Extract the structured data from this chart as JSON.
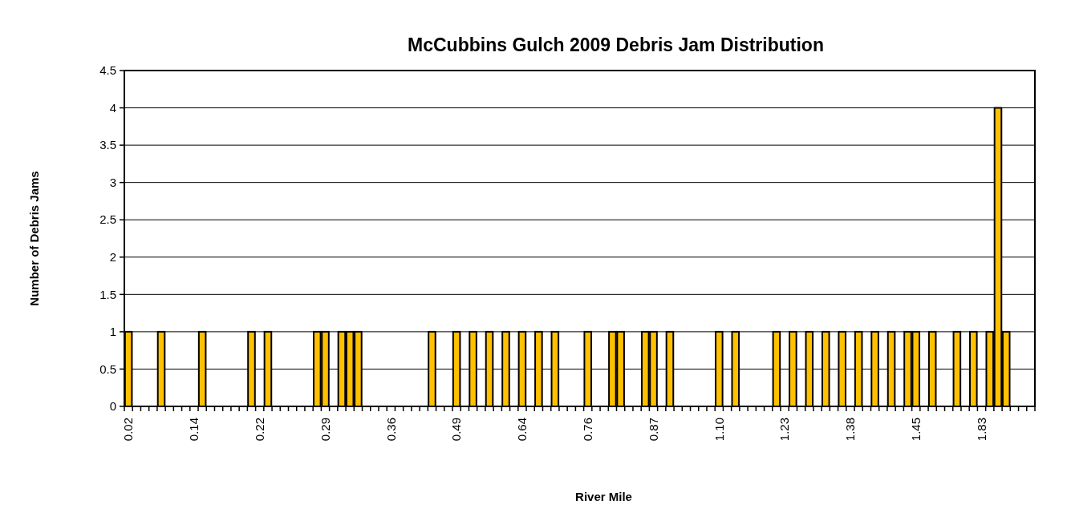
{
  "chart_data": {
    "type": "bar",
    "title": "McCubbins Gulch 2009 Debris Jam Distribution",
    "xlabel": "River Mile",
    "ylabel": "Number of Debris Jams",
    "categories": [
      "0.02",
      null,
      null,
      null,
      null,
      null,
      null,
      null,
      "0.14",
      null,
      null,
      null,
      null,
      null,
      null,
      null,
      "0.22",
      null,
      null,
      null,
      null,
      null,
      null,
      null,
      "0.29",
      null,
      null,
      null,
      null,
      null,
      null,
      null,
      "0.36",
      null,
      null,
      null,
      null,
      null,
      null,
      null,
      "0.49",
      null,
      null,
      null,
      null,
      null,
      null,
      null,
      "0.64",
      null,
      null,
      null,
      null,
      null,
      null,
      null,
      "0.76",
      null,
      null,
      null,
      null,
      null,
      null,
      null,
      "0.87",
      null,
      null,
      null,
      null,
      null,
      null,
      null,
      "1.10",
      null,
      null,
      null,
      null,
      null,
      null,
      null,
      "1.23",
      null,
      null,
      null,
      null,
      null,
      null,
      null,
      "1.38",
      null,
      null,
      null,
      null,
      null,
      null,
      null,
      "1.45",
      null,
      null,
      null,
      null,
      null,
      null,
      null,
      "1.83",
      null,
      null,
      null,
      null,
      null,
      null
    ],
    "values": [
      1,
      0,
      0,
      0,
      1,
      0,
      0,
      0,
      0,
      1,
      0,
      0,
      0,
      0,
      0,
      1,
      0,
      1,
      0,
      0,
      0,
      0,
      0,
      1,
      1,
      0,
      1,
      1,
      1,
      0,
      0,
      0,
      0,
      0,
      0,
      0,
      0,
      1,
      0,
      0,
      1,
      0,
      1,
      0,
      1,
      0,
      1,
      0,
      1,
      0,
      1,
      0,
      1,
      0,
      0,
      0,
      1,
      0,
      0,
      1,
      1,
      0,
      0,
      1,
      1,
      0,
      1,
      0,
      0,
      0,
      0,
      0,
      1,
      0,
      1,
      0,
      0,
      0,
      0,
      1,
      0,
      1,
      0,
      1,
      0,
      1,
      0,
      1,
      0,
      1,
      0,
      1,
      0,
      1,
      0,
      1,
      1,
      0,
      1,
      0,
      0,
      1,
      0,
      1,
      0,
      1,
      4,
      1,
      0,
      0,
      0
    ],
    "color": "#ffc000",
    "ylim": [
      0,
      4.5
    ],
    "yticks": [
      0,
      0.5,
      1,
      1.5,
      2,
      2.5,
      3,
      3.5,
      4,
      4.5
    ],
    "grid": "y"
  }
}
